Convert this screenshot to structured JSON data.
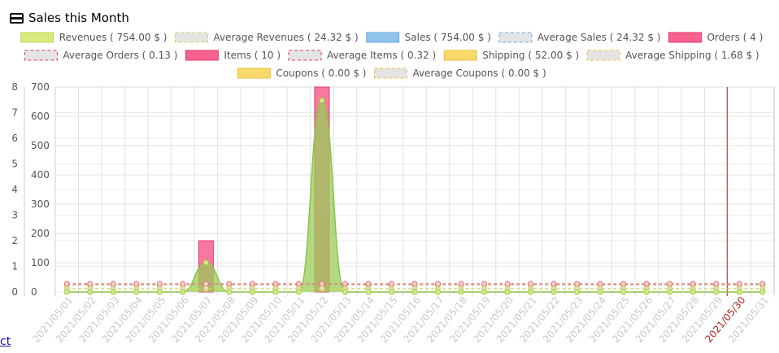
{
  "header": {
    "title": "Sales this Month",
    "icon": "credit-card-icon"
  },
  "footer": {
    "link_text": "ct"
  },
  "chart_data": {
    "type": "bar",
    "title": "Sales this Month",
    "categories": [
      "2021/05/01",
      "2021/05/02",
      "2021/05/03",
      "2021/05/04",
      "2021/05/05",
      "2021/05/06",
      "2021/05/07",
      "2021/05/08",
      "2021/05/09",
      "2021/05/10",
      "2021/05/11",
      "2021/05/12",
      "2021/05/13",
      "2021/05/14",
      "2021/05/15",
      "2021/05/16",
      "2021/05/17",
      "2021/05/18",
      "2021/05/19",
      "2021/05/20",
      "2021/05/21",
      "2021/05/22",
      "2021/05/23",
      "2021/05/24",
      "2021/05/25",
      "2021/05/26",
      "2021/05/27",
      "2021/05/28",
      "2021/05/29",
      "2021/05/30",
      "2021/05/31"
    ],
    "highlight_category": "2021/05/30",
    "highlight_color": "#b22222",
    "y_left": {
      "ticks": [
        0,
        1,
        2,
        3,
        4,
        5,
        6,
        7,
        8
      ],
      "ylim": [
        0,
        8
      ]
    },
    "y_right": {
      "ticks": [
        0,
        100,
        200,
        300,
        400,
        500,
        600,
        700
      ],
      "ylim": [
        0,
        700
      ]
    },
    "grid": true,
    "legend_placement": "top",
    "legend": [
      {
        "label": "Revenues ( 754.00 $ )",
        "fill": "#d9ea7d",
        "stroke": "#c0d85a",
        "dashed": false
      },
      {
        "label": "Average Revenues ( 24.32 $ )",
        "fill": "#e4e4e4",
        "stroke": "#c8d75a",
        "dashed": true
      },
      {
        "label": "Sales ( 754.00 $ )",
        "fill": "#8ec3ea",
        "stroke": "#6fa9dc",
        "dashed": false
      },
      {
        "label": "Average Sales ( 24.32 $ )",
        "fill": "#e4e4e4",
        "stroke": "#6fa9dc",
        "dashed": true
      },
      {
        "label": "Orders ( 4 )",
        "fill": "#f7628e",
        "stroke": "#e03a6c",
        "dashed": false
      },
      {
        "label": "Average Orders ( 0.13 )",
        "fill": "#e4e4e4",
        "stroke": "#e03a6c",
        "dashed": true
      },
      {
        "label": "Items ( 10 )",
        "fill": "#f7628e",
        "stroke": "#e03a6c",
        "dashed": false
      },
      {
        "label": "Average Items ( 0.32 )",
        "fill": "#e4e4e4",
        "stroke": "#e03a6c",
        "dashed": true
      },
      {
        "label": "Shipping ( 52.00 $ )",
        "fill": "#f8d96a",
        "stroke": "#e8c340",
        "dashed": false
      },
      {
        "label": "Average Shipping ( 1.68 $ )",
        "fill": "#e4e4e4",
        "stroke": "#e8c340",
        "dashed": true
      },
      {
        "label": "Coupons ( 0.00 $ )",
        "fill": "#f8d96a",
        "stroke": "#e8c340",
        "dashed": false
      },
      {
        "label": "Average Coupons ( 0.00 $ )",
        "fill": "#e4e4e4",
        "stroke": "#e8c340",
        "dashed": true
      }
    ],
    "series": [
      {
        "name": "Revenues ( 754.00 $ )",
        "type": "area",
        "axis": "right",
        "color": "#9acd5a",
        "values": [
          0,
          0,
          0,
          0,
          0,
          0,
          100,
          0,
          0,
          0,
          0,
          654,
          0,
          0,
          0,
          0,
          0,
          0,
          0,
          0,
          0,
          0,
          0,
          0,
          0,
          0,
          0,
          0,
          0,
          0,
          0
        ]
      },
      {
        "name": "Orders ( 4 )",
        "type": "bar",
        "axis": "left",
        "color": "#f7628e",
        "values": [
          0,
          0,
          0,
          0,
          0,
          0,
          1,
          0,
          0,
          0,
          0,
          3,
          0,
          0,
          0,
          0,
          0,
          0,
          0,
          0,
          0,
          0,
          0,
          0,
          0,
          0,
          0,
          0,
          0,
          0,
          0
        ]
      },
      {
        "name": "Items ( 10 )",
        "type": "bar",
        "axis": "left",
        "color": "#f7628e",
        "values": [
          0,
          0,
          0,
          0,
          0,
          0,
          2,
          0,
          0,
          0,
          0,
          8,
          0,
          0,
          0,
          0,
          0,
          0,
          0,
          0,
          0,
          0,
          0,
          0,
          0,
          0,
          0,
          0,
          0,
          0,
          0
        ]
      },
      {
        "name": "Average Revenues ( 24.32 $ )",
        "type": "line",
        "axis": "right",
        "color": "#c8b86a",
        "dashed": true,
        "value": 24.32
      },
      {
        "name": "Average Items ( 0.32 )",
        "type": "line",
        "axis": "left",
        "color": "#e06a8a",
        "dashed": true,
        "value": 0.32
      },
      {
        "name": "Average Orders ( 0.13 )",
        "type": "line",
        "axis": "left",
        "color": "#c8d75a",
        "dashed": true,
        "value": 0.13
      }
    ]
  }
}
